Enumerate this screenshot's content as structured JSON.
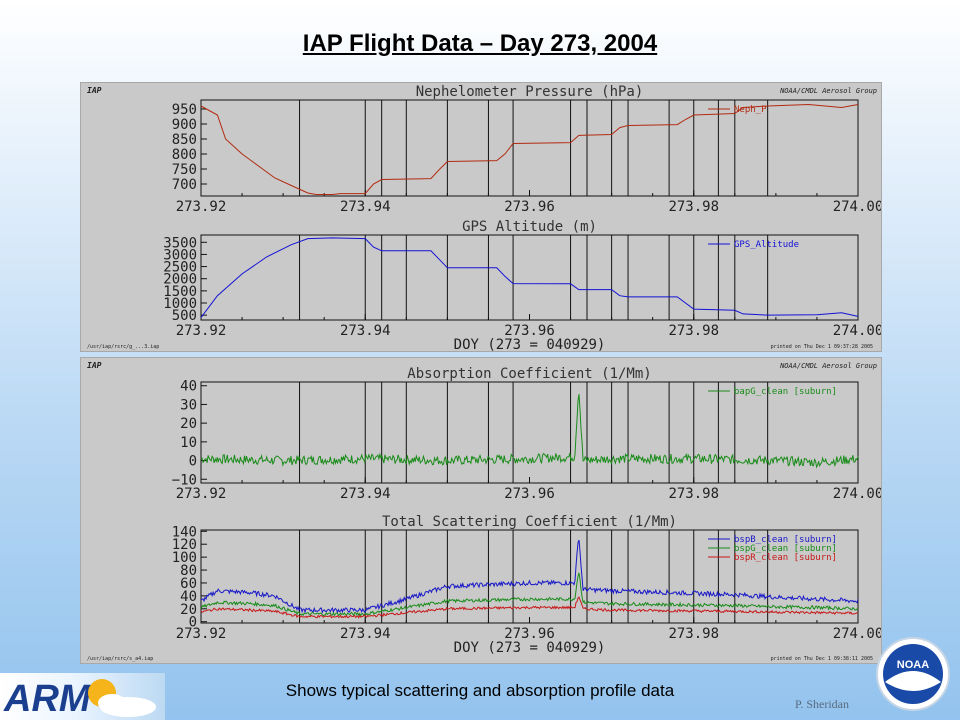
{
  "slide": {
    "title": "IAP Flight Data – Day 273, 2004",
    "caption": "Shows typical scattering and absorption profile data",
    "author": "P. Sheridan",
    "arm_logo_text": "ARM",
    "noaa_logo_text": "NOAA"
  },
  "panels": [
    {
      "corner_left": "IAP",
      "corner_right": "NOAA/CMDL Aerosol Group",
      "footer_left": "/usr/iap/rsrc/g_...3.iap",
      "footer_right": "printed on Thu Dec  1 09:37:28 2005"
    },
    {
      "corner_left": "IAP",
      "corner_right": "NOAA/CMDL Aerosol Group",
      "footer_left": "/usr/iap/rsrc/s_a4.iap",
      "footer_right": "printed on Thu Dec  1 09:38:11 2005"
    }
  ],
  "vlines": [
    273.932,
    273.94,
    273.942,
    273.945,
    273.95,
    273.955,
    273.958,
    273.965,
    273.967,
    273.97,
    273.972,
    273.977,
    273.98,
    273.983,
    273.985,
    273.989
  ],
  "chart_data": [
    {
      "type": "line",
      "title": "Nephelometer Pressure (hPa)",
      "xlabel": "",
      "ylabel": "",
      "xlim": [
        273.92,
        274.0
      ],
      "ylim": [
        660,
        980
      ],
      "xticks": [
        "273.92",
        "273.94",
        "273.96",
        "273.98",
        "274.00"
      ],
      "yticks": [
        "700",
        "750",
        "800",
        "850",
        "900",
        "950"
      ],
      "grid": false,
      "legend_position": "top-right",
      "series": [
        {
          "name": "Neph_P",
          "color": "#b22a10",
          "x": [
            273.92,
            273.922,
            273.923,
            273.925,
            273.927,
            273.929,
            273.931,
            273.933,
            273.934,
            273.936,
            273.937,
            273.94,
            273.941,
            273.942,
            273.948,
            273.949,
            273.95,
            273.956,
            273.957,
            273.958,
            273.965,
            273.966,
            273.97,
            273.971,
            273.972,
            273.978,
            273.979,
            273.98,
            273.985,
            273.986,
            273.989,
            273.994,
            273.998,
            274.0
          ],
          "y": [
            960,
            930,
            850,
            800,
            760,
            720,
            695,
            670,
            665,
            665,
            668,
            668,
            700,
            715,
            718,
            748,
            775,
            778,
            800,
            835,
            838,
            862,
            865,
            888,
            895,
            898,
            915,
            930,
            935,
            955,
            960,
            965,
            955,
            965
          ]
        }
      ]
    },
    {
      "type": "line",
      "title": "GPS Altitude (m)",
      "xlabel": "DOY (273 = 040929)",
      "ylabel": "",
      "xlim": [
        273.92,
        274.0
      ],
      "ylim": [
        300,
        3800
      ],
      "xticks": [
        "273.92",
        "273.94",
        "273.96",
        "273.98",
        "274.00"
      ],
      "yticks": [
        "500",
        "1000",
        "1500",
        "2000",
        "2500",
        "3000",
        "3500"
      ],
      "grid": false,
      "legend_position": "top-right",
      "series": [
        {
          "name": "GPS_Altitude",
          "color": "#1212d6",
          "x": [
            273.92,
            273.922,
            273.925,
            273.928,
            273.931,
            273.933,
            273.936,
            273.94,
            273.941,
            273.942,
            273.948,
            273.949,
            273.95,
            273.956,
            273.957,
            273.958,
            273.965,
            273.966,
            273.97,
            273.971,
            273.972,
            273.978,
            273.979,
            273.98,
            273.985,
            273.986,
            273.989,
            273.995,
            273.998,
            274.0
          ],
          "y": [
            400,
            1300,
            2200,
            2900,
            3400,
            3650,
            3680,
            3650,
            3300,
            3150,
            3150,
            2800,
            2450,
            2450,
            2100,
            1800,
            1790,
            1550,
            1550,
            1300,
            1250,
            1250,
            1000,
            750,
            700,
            550,
            500,
            520,
            600,
            450
          ]
        }
      ]
    },
    {
      "type": "line",
      "title": "Absorption Coefficient (1/Mm)",
      "xlabel": "",
      "ylabel": "",
      "xlim": [
        273.92,
        274.0
      ],
      "ylim": [
        -12,
        42
      ],
      "xticks": [
        "273.92",
        "273.94",
        "273.96",
        "273.98",
        "274.00"
      ],
      "yticks": [
        "−10",
        "0",
        "10",
        "20",
        "30",
        "40"
      ],
      "grid": false,
      "legend_position": "top-right",
      "series": [
        {
          "name": "bapG_clean [suburn]",
          "color": "#1a8c1a",
          "x": [
            273.92,
            273.93,
            273.94,
            273.95,
            273.96,
            273.9655,
            273.966,
            273.9665,
            273.97,
            273.98,
            273.99,
            273.995,
            274.0
          ],
          "y": [
            1,
            0,
            1,
            0,
            1,
            2,
            40,
            0,
            1,
            1,
            0,
            -1,
            1
          ],
          "noise": 2.5
        }
      ]
    },
    {
      "type": "line",
      "title": "Total Scattering Coefficient (1/Mm)",
      "xlabel": "DOY (273 = 040929)",
      "ylabel": "",
      "xlim": [
        273.92,
        274.0
      ],
      "ylim": [
        -2,
        142
      ],
      "xticks": [
        "273.92",
        "273.94",
        "273.96",
        "273.98",
        "274.00"
      ],
      "yticks": [
        "0",
        "20",
        "40",
        "60",
        "80",
        "100",
        "120",
        "140"
      ],
      "grid": false,
      "legend_position": "top-right",
      "series": [
        {
          "name": "bspB_clean [suburn]",
          "color": "#1818c8",
          "x": [
            273.92,
            273.922,
            273.926,
            273.929,
            273.932,
            273.94,
            273.945,
            273.95,
            273.96,
            273.9655,
            273.966,
            273.9665,
            273.97,
            273.985,
            273.99,
            273.995,
            274.0
          ],
          "y": [
            32,
            48,
            45,
            40,
            18,
            18,
            35,
            55,
            60,
            60,
            135,
            50,
            48,
            42,
            38,
            35,
            32
          ],
          "noise": 3.5
        },
        {
          "name": "bspG_clean [suburn]",
          "color": "#1a8c1a",
          "x": [
            273.92,
            273.922,
            273.926,
            273.929,
            273.932,
            273.94,
            273.945,
            273.95,
            273.96,
            273.9655,
            273.966,
            273.9665,
            273.97,
            273.985,
            273.99,
            273.995,
            274.0
          ],
          "y": [
            22,
            30,
            28,
            25,
            12,
            12,
            22,
            32,
            35,
            35,
            80,
            30,
            28,
            25,
            23,
            22,
            20
          ],
          "noise": 2.5
        },
        {
          "name": "bspR_clean [suburn]",
          "color": "#c81818",
          "x": [
            273.92,
            273.922,
            273.926,
            273.929,
            273.932,
            273.94,
            273.945,
            273.95,
            273.96,
            273.9655,
            273.966,
            273.9665,
            273.97,
            273.985,
            273.99,
            273.995,
            274.0
          ],
          "y": [
            15,
            20,
            18,
            16,
            8,
            8,
            14,
            20,
            22,
            22,
            40,
            20,
            18,
            16,
            15,
            14,
            13
          ],
          "noise": 2
        }
      ]
    }
  ]
}
